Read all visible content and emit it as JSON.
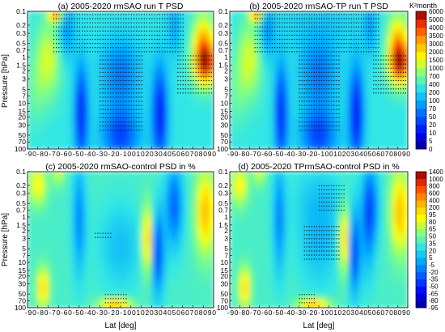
{
  "figure": {
    "panels": [
      {
        "id": "a",
        "title": "(a) 2005-2020 rmSAO run T PSD",
        "colorbar": "psd"
      },
      {
        "id": "b",
        "title": "(b) 2005-2020 rmSAO-TP run T PSD",
        "colorbar": "psd"
      },
      {
        "id": "c",
        "title": "(c) 2005-2020 rmSAO-control PSD in %",
        "colorbar": "pct"
      },
      {
        "id": "d",
        "title": "(d) 2005-2020 TPrmSAO-control PSD in %",
        "colorbar": "pct"
      }
    ],
    "ylabel": "Pressure [hPa]",
    "xlabel": "Lat [deg]",
    "colorbar_unit": "K²month"
  },
  "chart_data": [
    {
      "type": "heatmap",
      "title": "(a) 2005-2020 rmSAO run T PSD",
      "ylabel": "Pressure [hPa]",
      "y_scale": "log",
      "y_reversed": true,
      "ylim": [
        100,
        0.1
      ],
      "xlim": [
        -90,
        90
      ],
      "x_ticks": [
        -90,
        -80,
        -70,
        -60,
        -50,
        -40,
        -30,
        -20,
        -10,
        0,
        10,
        20,
        30,
        40,
        50,
        60,
        70,
        80,
        90
      ],
      "y_ticks": [
        0.1,
        0.2,
        0.3,
        0.5,
        0.7,
        1,
        1.5,
        2,
        3,
        5,
        7,
        10,
        15,
        20,
        30,
        50,
        70,
        100
      ],
      "colorbar_ticks": [
        0,
        5,
        10,
        20,
        50,
        70,
        100,
        200,
        400,
        700,
        1000,
        1500,
        2000,
        3000,
        3500,
        4000,
        5000,
        6000
      ],
      "colorbar_unit": "K²month",
      "field": "psd",
      "stippling": true
    },
    {
      "type": "heatmap",
      "title": "(b) 2005-2020 rmSAO-TP run T PSD",
      "y_scale": "log",
      "y_reversed": true,
      "ylim": [
        100,
        0.1
      ],
      "xlim": [
        -90,
        90
      ],
      "x_ticks": [
        -90,
        -80,
        -70,
        -60,
        -50,
        -40,
        -30,
        -20,
        -10,
        0,
        10,
        20,
        30,
        40,
        50,
        60,
        70,
        80,
        90
      ],
      "y_ticks": [
        0.1,
        0.2,
        0.3,
        0.5,
        0.7,
        1,
        1.5,
        2,
        3,
        5,
        7,
        10,
        15,
        20,
        30,
        50,
        70,
        100
      ],
      "colorbar_ticks": [
        0,
        5,
        10,
        20,
        50,
        70,
        100,
        200,
        400,
        700,
        1000,
        1500,
        2000,
        3000,
        3500,
        4000,
        5000,
        6000
      ],
      "colorbar_unit": "K²month",
      "field": "psd",
      "stippling": true
    },
    {
      "type": "heatmap",
      "title": "(c) 2005-2020 rmSAO-control PSD in %",
      "ylabel": "Pressure [hPa]",
      "xlabel": "Lat [deg]",
      "y_scale": "log",
      "y_reversed": true,
      "ylim": [
        100,
        0.1
      ],
      "xlim": [
        -90,
        90
      ],
      "x_ticks": [
        -90,
        -80,
        -70,
        -60,
        -50,
        -40,
        -30,
        -20,
        -10,
        0,
        10,
        20,
        30,
        40,
        50,
        60,
        70,
        80,
        90
      ],
      "y_ticks": [
        0.1,
        0.2,
        0.3,
        0.5,
        0.7,
        1,
        1.5,
        2,
        3,
        5,
        7,
        10,
        15,
        20,
        30,
        50,
        70,
        100
      ],
      "colorbar_ticks": [
        -95,
        -80,
        -65,
        -50,
        -35,
        -20,
        -5,
        5,
        20,
        35,
        50,
        65,
        80,
        95,
        200,
        400,
        600,
        800,
        1000,
        1400
      ],
      "field": "pct",
      "stippling": true
    },
    {
      "type": "heatmap",
      "title": "(d) 2005-2020 TPrmSAO-control PSD in %",
      "xlabel": "Lat [deg]",
      "y_scale": "log",
      "y_reversed": true,
      "ylim": [
        100,
        0.1
      ],
      "xlim": [
        -90,
        90
      ],
      "x_ticks": [
        -90,
        -80,
        -70,
        -60,
        -50,
        -40,
        -30,
        -20,
        -10,
        0,
        10,
        20,
        30,
        40,
        50,
        60,
        70,
        80,
        90
      ],
      "y_ticks": [
        0.1,
        0.2,
        0.3,
        0.5,
        0.7,
        1,
        1.5,
        2,
        3,
        5,
        7,
        10,
        15,
        20,
        30,
        50,
        70,
        100
      ],
      "colorbar_ticks": [
        -95,
        -80,
        -65,
        -50,
        -35,
        -20,
        -5,
        5,
        20,
        35,
        50,
        65,
        80,
        95,
        200,
        400,
        600,
        800,
        1000,
        1400
      ],
      "field": "pct",
      "stippling": true
    }
  ]
}
